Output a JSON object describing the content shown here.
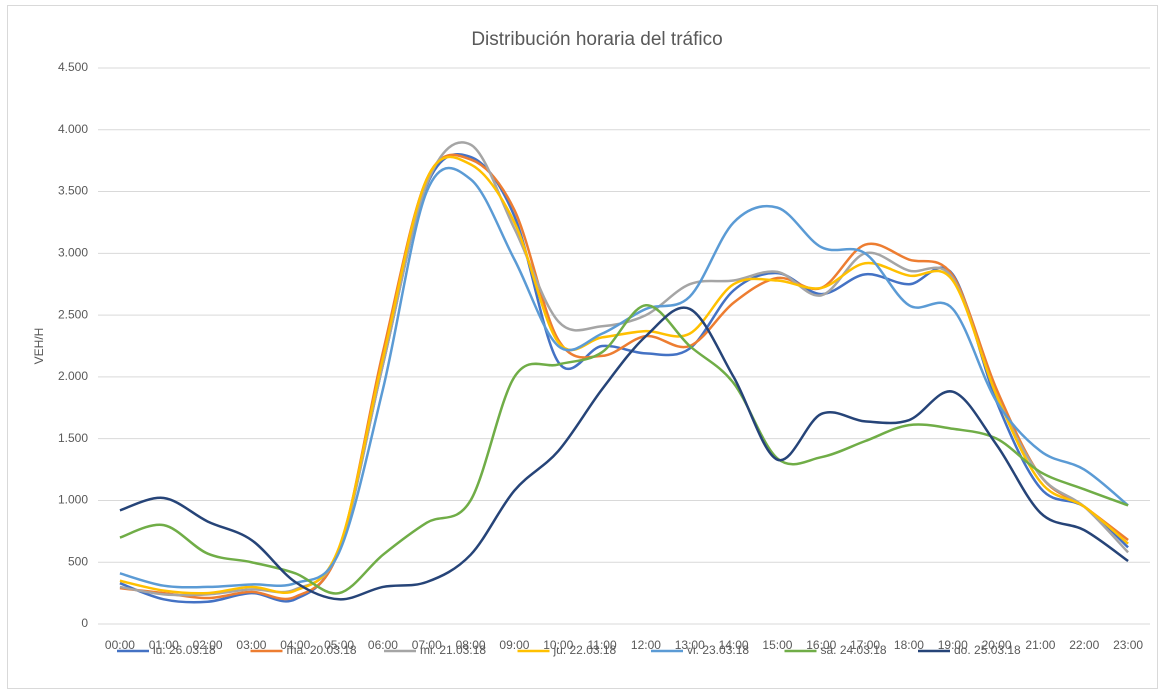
{
  "chart_data": {
    "type": "line",
    "title": "Distribución horaria del tráfico",
    "y_label": "VEH/H",
    "categories": [
      "00:00",
      "01:00",
      "02:00",
      "03:00",
      "04:00",
      "05:00",
      "06:00",
      "07:00",
      "08:00",
      "09:00",
      "10:00",
      "11:00",
      "12:00",
      "13:00",
      "14:00",
      "15:00",
      "16:00",
      "17:00",
      "18:00",
      "19:00",
      "20:00",
      "21:00",
      "22:00",
      "23:00"
    ],
    "ylim": [
      0,
      4500
    ],
    "yticks": [
      0,
      500,
      {
        "value": 1000,
        "label": "1.000"
      },
      {
        "value": 1500,
        "label": "1.500"
      },
      {
        "value": 2000,
        "label": "2.000"
      },
      {
        "value": 2500,
        "label": "2.500"
      },
      {
        "value": 3000,
        "label": "3.000"
      },
      {
        "value": 3500,
        "label": "3.500"
      },
      {
        "value": 4000,
        "label": "4.000"
      },
      {
        "value": 4500,
        "label": "4.500"
      }
    ],
    "grid": true,
    "legend": "bottom",
    "series": [
      {
        "name": "lu. 26.03.18",
        "color": "#4472c4",
        "values": [
          330,
          200,
          180,
          250,
          200,
          600,
          2100,
          3550,
          3780,
          3300,
          2120,
          2250,
          2190,
          2230,
          2700,
          2840,
          2670,
          2830,
          2750,
          2830,
          1800,
          1100,
          950,
          620
        ]
      },
      {
        "name": "ma. 20.03.18",
        "color": "#ed7d31",
        "values": [
          290,
          250,
          210,
          260,
          220,
          600,
          2200,
          3600,
          3760,
          3350,
          2300,
          2170,
          2330,
          2250,
          2600,
          2800,
          2720,
          3070,
          2950,
          2820,
          1900,
          1200,
          950,
          680
        ]
      },
      {
        "name": "mi. 21.03.18",
        "color": "#a5a5a5",
        "values": [
          300,
          240,
          240,
          280,
          280,
          600,
          2100,
          3560,
          3880,
          3200,
          2450,
          2410,
          2500,
          2750,
          2780,
          2850,
          2660,
          3000,
          2860,
          2800,
          1850,
          1200,
          950,
          580
        ]
      },
      {
        "name": "ju. 22.03.18",
        "color": "#ffc000",
        "values": [
          350,
          270,
          250,
          300,
          270,
          620,
          2150,
          3600,
          3720,
          3250,
          2280,
          2320,
          2370,
          2350,
          2750,
          2780,
          2720,
          2920,
          2820,
          2780,
          1850,
          1150,
          950,
          650
        ]
      },
      {
        "name": "vi. 23.03.18",
        "color": "#5b9bd5",
        "values": [
          410,
          310,
          300,
          320,
          330,
          580,
          1900,
          3500,
          3600,
          2950,
          2250,
          2350,
          2550,
          2650,
          3250,
          3370,
          3050,
          3000,
          2580,
          2550,
          1800,
          1400,
          1250,
          960
        ]
      },
      {
        "name": "sá. 24.03.18",
        "color": "#70ad47",
        "values": [
          700,
          800,
          570,
          500,
          410,
          250,
          560,
          820,
          1000,
          2000,
          2100,
          2200,
          2580,
          2250,
          1950,
          1340,
          1350,
          1480,
          1610,
          1580,
          1500,
          1230,
          1090,
          960
        ]
      },
      {
        "name": "do. 25.03.18",
        "color": "#264478",
        "values": [
          920,
          1020,
          830,
          680,
          340,
          200,
          300,
          340,
          560,
          1080,
          1400,
          1900,
          2330,
          2550,
          2000,
          1330,
          1700,
          1640,
          1650,
          1880,
          1450,
          900,
          760,
          510
        ]
      }
    ]
  }
}
